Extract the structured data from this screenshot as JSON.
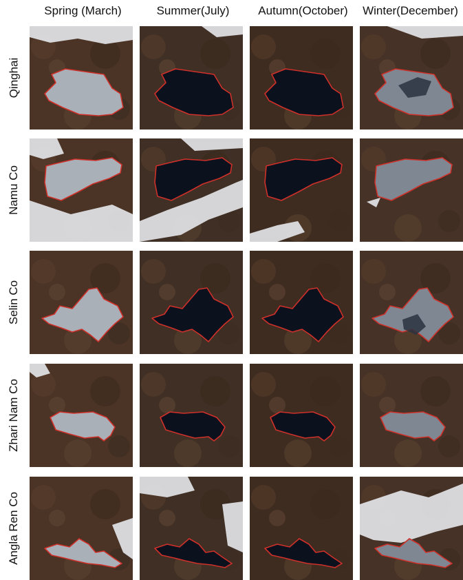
{
  "columns": [
    {
      "label": "Spring (March)",
      "season": "spring"
    },
    {
      "label": "Summer(July)",
      "season": "summer"
    },
    {
      "label": "Autumn(October)",
      "season": "autumn"
    },
    {
      "label": "Winter(December)",
      "season": "winter"
    }
  ],
  "rows": [
    {
      "label": "Qinghai",
      "lake": "qinghai"
    },
    {
      "label": "Namu Co",
      "lake": "namu"
    },
    {
      "label": "Selin Co",
      "lake": "selin"
    },
    {
      "label": "Zhari Nam Co",
      "lake": "zhari"
    },
    {
      "label": "Angla Ren Co",
      "lake": "angla"
    }
  ],
  "colors": {
    "boundary": "#d0302a",
    "ice": "#a9b0b8",
    "open_water": "#0c111e",
    "land": "#4a3324",
    "snow": "#e6e8ec"
  }
}
